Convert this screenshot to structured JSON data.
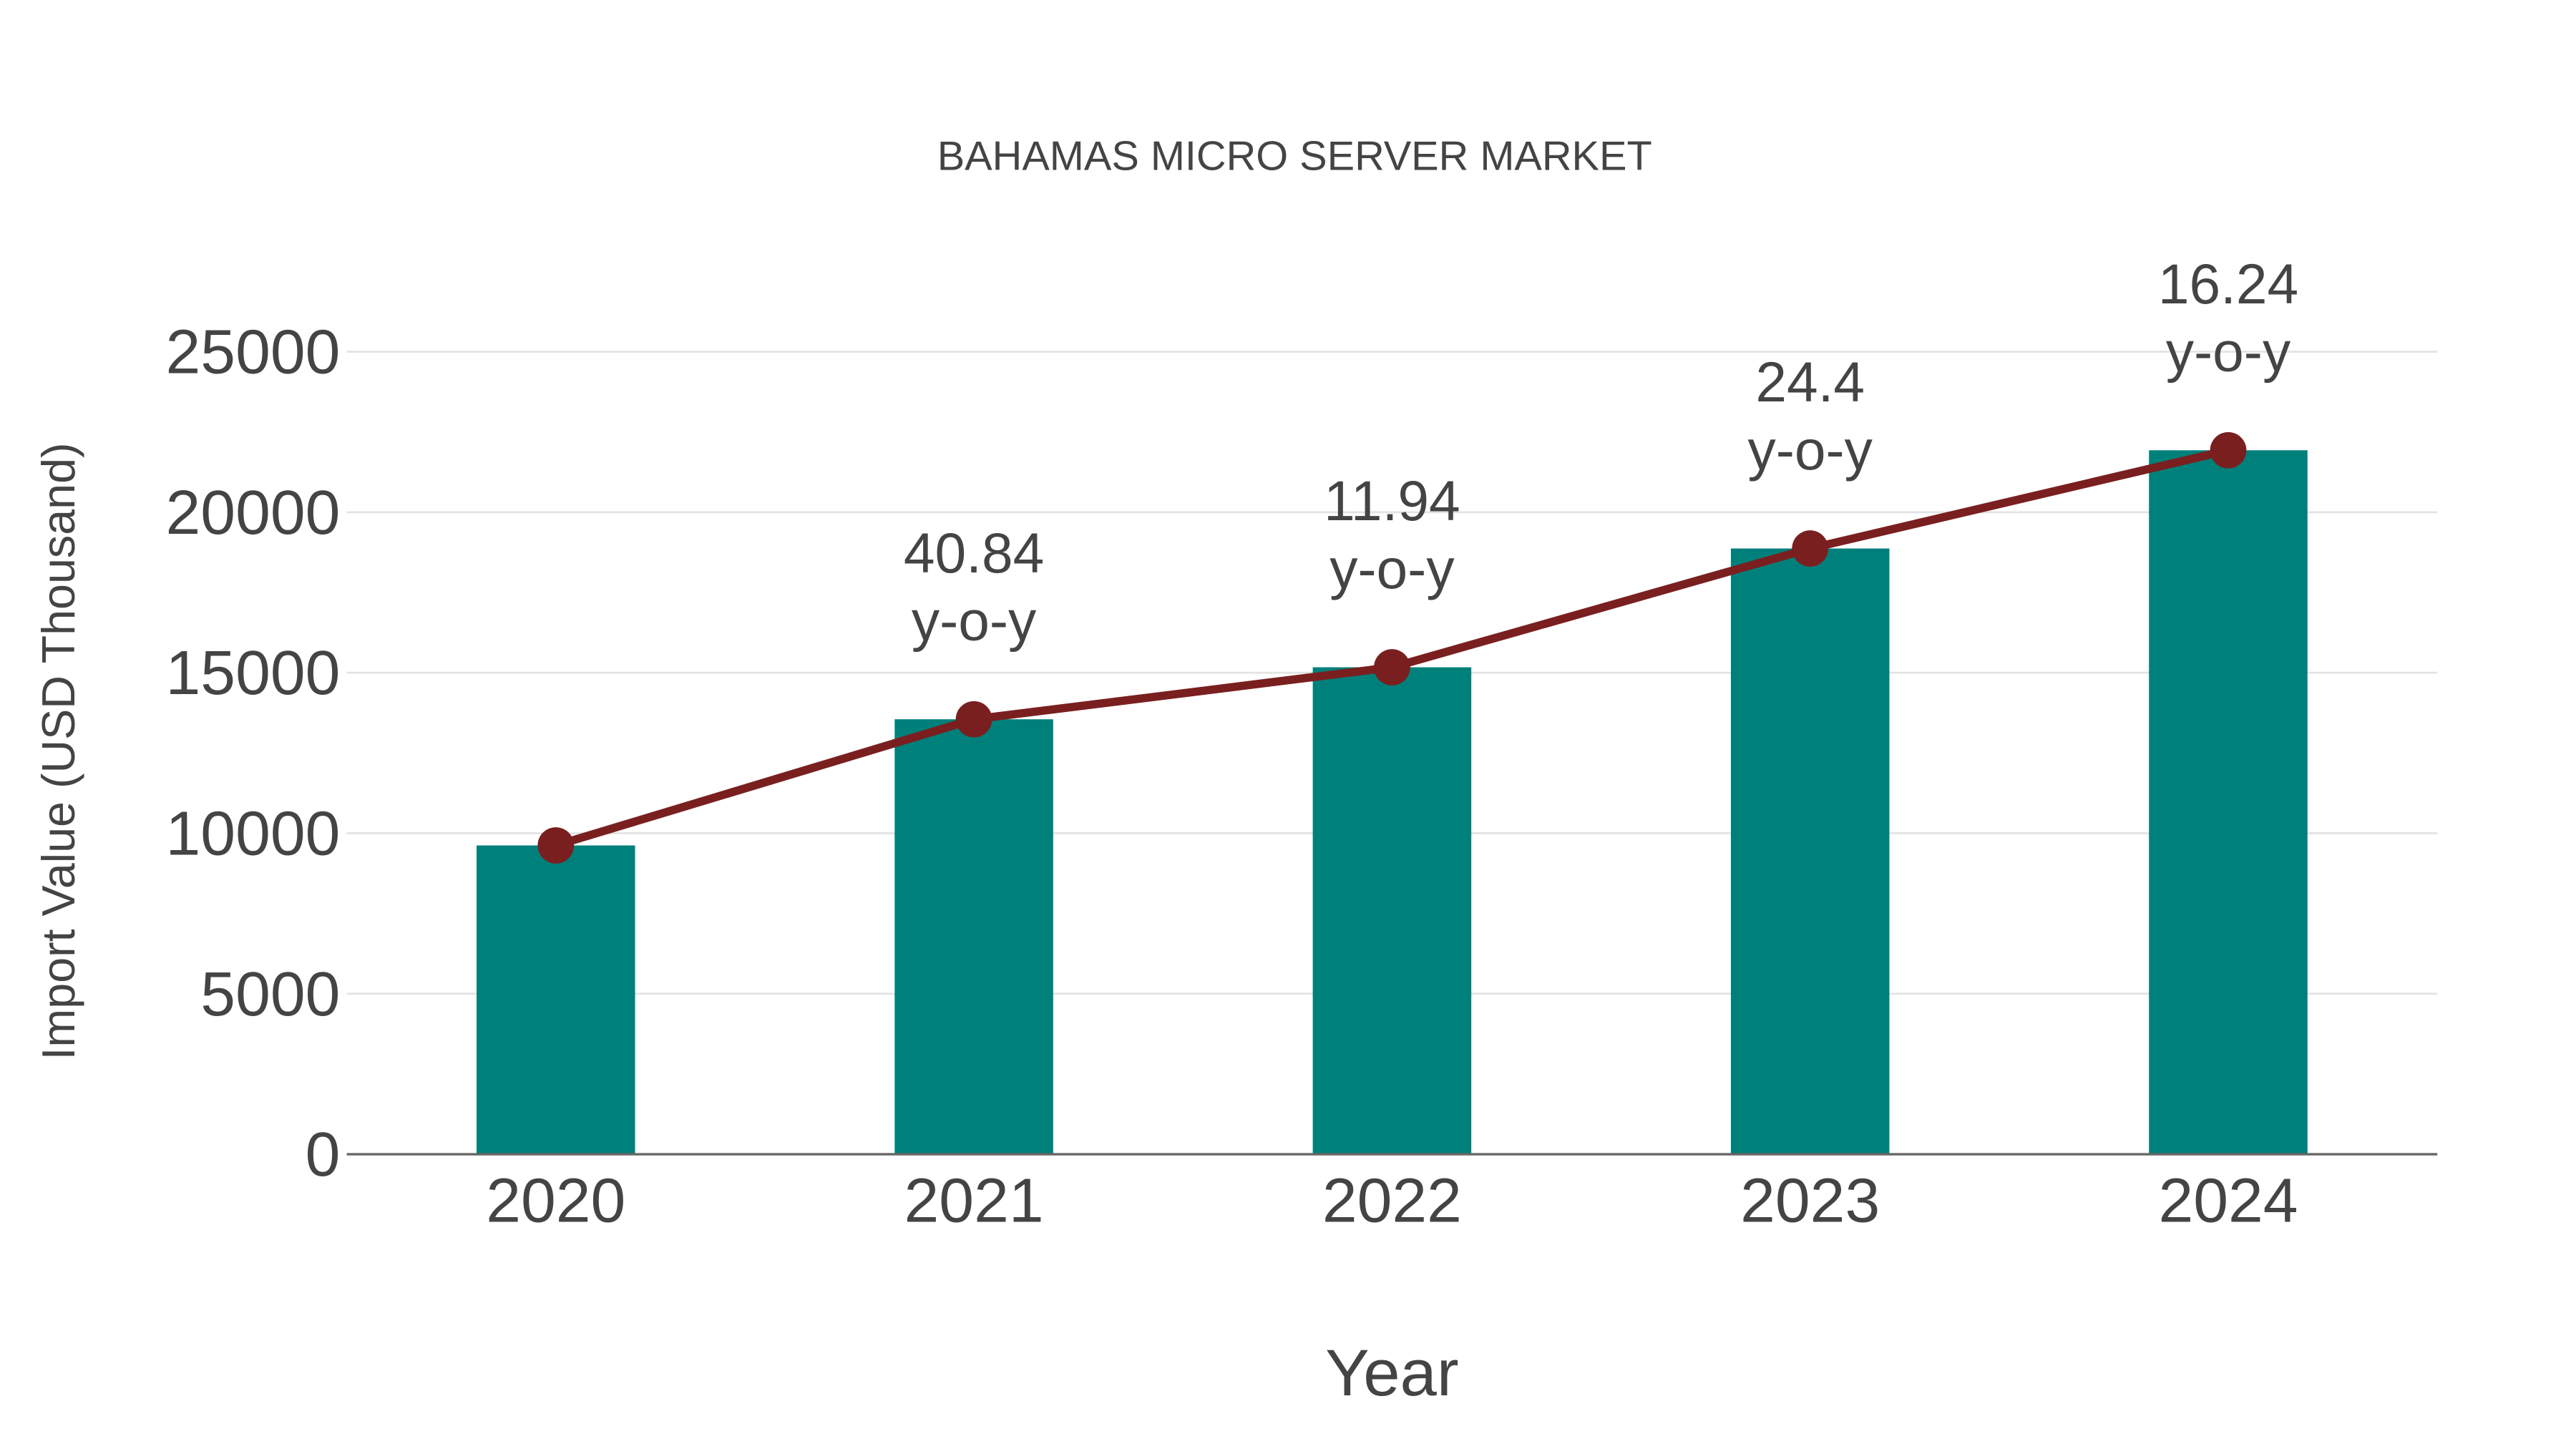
{
  "chart_data": {
    "type": "bar",
    "title": "BAHAMAS MICRO SERVER MARKET",
    "xlabel": "Year",
    "ylabel": "Import Value (USD Thousand)",
    "categories": [
      "2020",
      "2021",
      "2022",
      "2023",
      "2024"
    ],
    "series": [
      {
        "name": "Import Value",
        "kind": "bar",
        "color": "#00807b",
        "values": [
          9620,
          13550,
          15170,
          18870,
          21930
        ]
      },
      {
        "name": "Trend",
        "kind": "line",
        "color": "#7a1f1f",
        "values": [
          9620,
          13550,
          15170,
          18870,
          21930
        ]
      }
    ],
    "yoy_labels": [
      null,
      "40.84",
      "11.94",
      "24.4",
      "16.24"
    ],
    "yoy_suffix": "y-o-y",
    "ylim": [
      0,
      25000
    ],
    "yticks": [
      0,
      5000,
      10000,
      15000,
      20000,
      25000
    ],
    "grid": true
  }
}
